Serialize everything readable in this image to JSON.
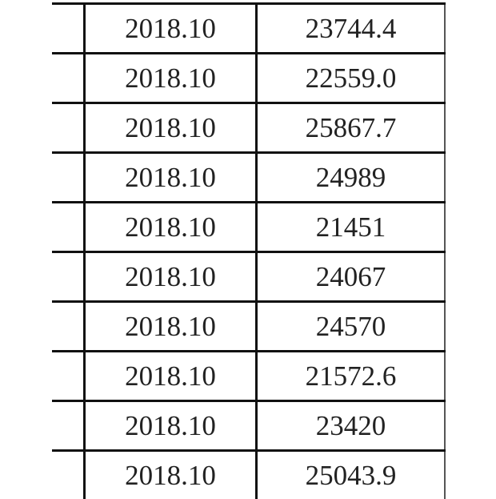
{
  "table": {
    "rows": [
      {
        "date": "2018.10",
        "value": "23744.4"
      },
      {
        "date": "2018.10",
        "value": "22559.0"
      },
      {
        "date": "2018.10",
        "value": "25867.7"
      },
      {
        "date": "2018.10",
        "value": "24989"
      },
      {
        "date": "2018.10",
        "value": "21451"
      },
      {
        "date": "2018.10",
        "value": "24067"
      },
      {
        "date": "2018.10",
        "value": "24570"
      },
      {
        "date": "2018.10",
        "value": "21572.6"
      },
      {
        "date": "2018.10",
        "value": "23420"
      },
      {
        "date": "2018.10",
        "value": "25043.9"
      }
    ]
  }
}
